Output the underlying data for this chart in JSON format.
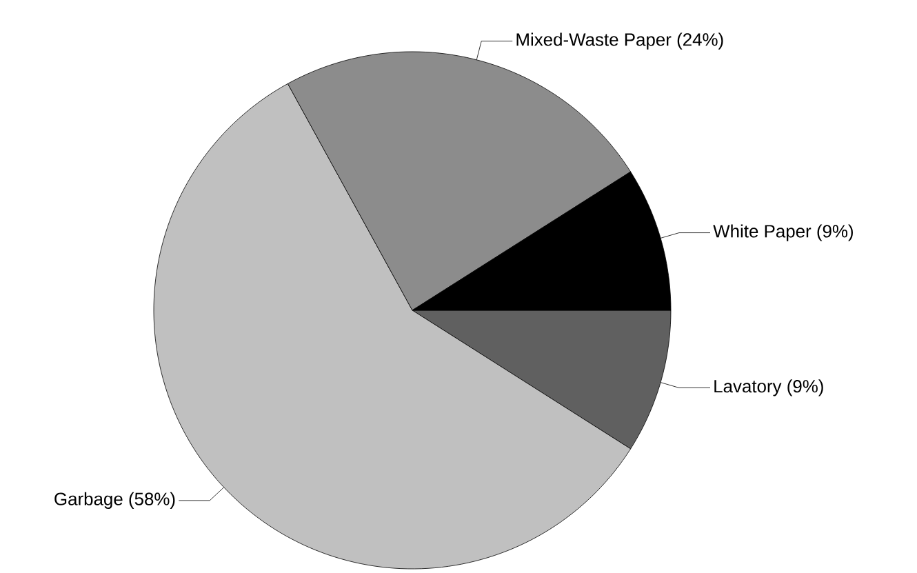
{
  "chart_data": {
    "type": "pie",
    "categories": [
      "Lavatory",
      "Garbage",
      "Mixed-Waste Paper",
      "White Paper"
    ],
    "values": [
      9,
      58,
      24,
      9
    ],
    "value_labels": [
      "(9%)",
      "(58%)",
      "(24%)",
      "(9%)"
    ],
    "colors": [
      "#606060",
      "#c0c0c0",
      "#8c8c8c",
      "#000000"
    ]
  }
}
